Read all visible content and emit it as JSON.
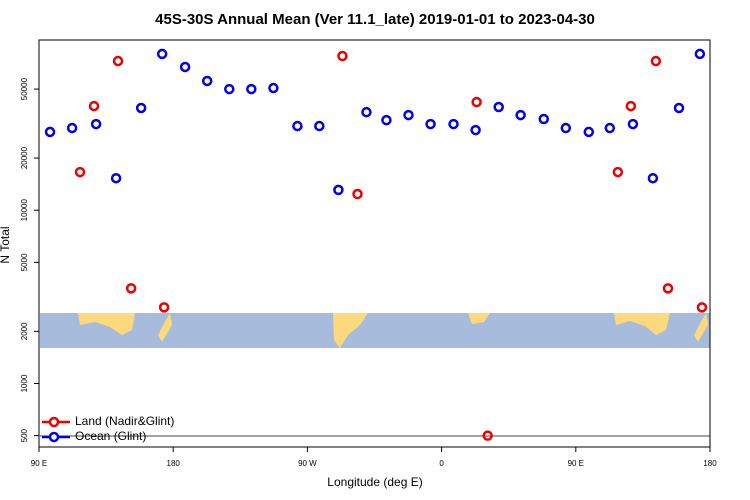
{
  "chart_data": {
    "type": "scatter",
    "title": "45S-30S Annual Mean (Ver 11.1_late)   2019-01-01 to 2023-04-30",
    "x_label": "Longitude (deg E)",
    "y_label": "N Total",
    "log_y": true,
    "xlim": [
      90,
      540
    ],
    "xticks": [
      {
        "value": 90,
        "label": "90 E"
      },
      180,
      {
        "value": 270,
        "label": "90 W"
      },
      {
        "value": 360,
        "label": "0"
      },
      {
        "value": 450,
        "label": "90 E"
      },
      {
        "value": 540,
        "label": "180"
      }
    ],
    "ylim": [
      430,
      96000
    ],
    "yticks": [
      500,
      1000,
      2000,
      5000,
      10000,
      20000,
      50000
    ],
    "legend": "bottom-left",
    "series": [
      {
        "name": "Land (Nadir&Glint)",
        "color": "#ee0000",
        "x": [
          117.5,
          126.9,
          143,
          151.8,
          173.9,
          293.5,
          303.6,
          383.5,
          390.9,
          478.2,
          486.9,
          503.7,
          511.8,
          534.6
        ],
        "values": [
          16600,
          39900,
          72600,
          3540,
          2750,
          77600,
          12400,
          42100,
          500,
          16600,
          39900,
          72600,
          3540,
          2750
        ]
      },
      {
        "name": "Ocean (Glint)",
        "color": "#0000ee",
        "x": [
          97.4,
          112.2,
          128.3,
          141.7,
          158.5,
          172.6,
          188,
          202.8,
          217.6,
          232.4,
          247.2,
          263.3,
          278,
          290.8,
          309.6,
          323,
          337.8,
          352.6,
          368,
          382.8,
          398.3,
          413,
          428.5,
          443.3,
          458.7,
          472.8,
          488.3,
          501.7,
          519.2,
          533.2
        ],
        "values": [
          28300,
          29800,
          31400,
          15300,
          38900,
          79800,
          67100,
          55700,
          50000,
          50000,
          50700,
          30600,
          30600,
          13100,
          36800,
          33100,
          35400,
          31400,
          31400,
          29000,
          39400,
          35400,
          33600,
          29800,
          28300,
          29800,
          31400,
          15300,
          38900,
          79800
        ]
      }
    ]
  }
}
